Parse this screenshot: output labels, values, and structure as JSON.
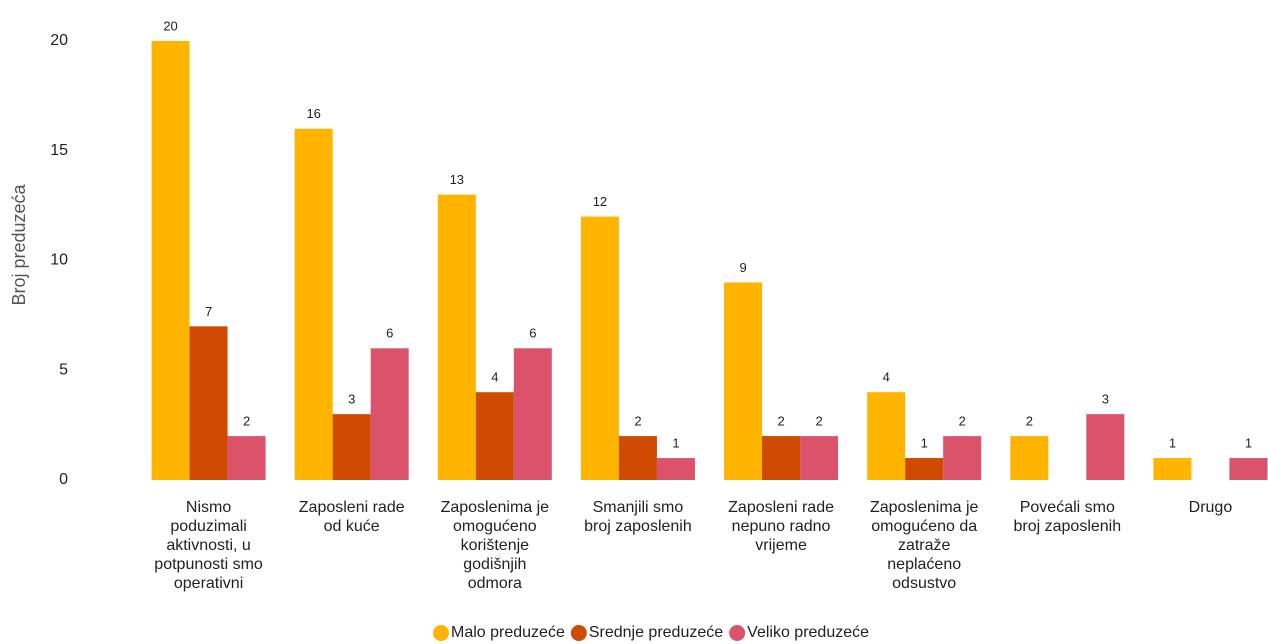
{
  "chart_data": {
    "type": "bar",
    "y_label": "Broj preduzeća",
    "categories": [
      "Nismo poduzimali aktivnosti, u potpunosti smo operativni",
      "Zaposleni rade od kuće",
      "Zaposlenima je omogućeno korištenje godišnjih odmora",
      "Smanjili smo broj zaposlenih",
      "Zaposleni rade nepuno radno vrijeme",
      "Zaposlenima je omogućeno da zatraže neplaćeno odsustvo",
      "Povećali smo broj zaposlenih",
      "Drugo"
    ],
    "series": [
      {
        "name": "Malo preduzeće",
        "color": "#ffb400",
        "values": [
          20,
          16,
          13,
          12,
          9,
          4,
          2,
          1
        ]
      },
      {
        "name": "Srednje preduzeće",
        "color": "#d04a02",
        "values": [
          7,
          3,
          4,
          2,
          2,
          1,
          null,
          null
        ]
      },
      {
        "name": "Veliko preduzeće",
        "color": "#db536a",
        "values": [
          2,
          6,
          6,
          1,
          2,
          2,
          3,
          1
        ]
      }
    ],
    "ylim": [
      0,
      20
    ],
    "yticks": [
      0,
      5,
      10,
      15,
      20
    ],
    "grid": false,
    "legend": "bottom"
  }
}
